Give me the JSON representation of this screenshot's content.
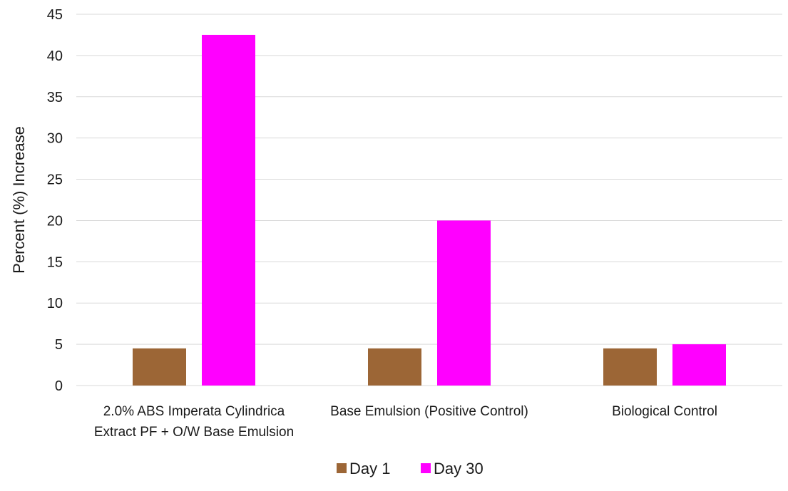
{
  "chart_data": {
    "type": "bar",
    "title": "",
    "xlabel": "",
    "ylabel": "Percent (%) Increase",
    "ylim": [
      0,
      45
    ],
    "yticks": [
      0,
      5,
      10,
      15,
      20,
      25,
      30,
      35,
      40,
      45
    ],
    "grid": true,
    "legend_position": "bottom-center",
    "categories": [
      [
        "2.0% ABS Imperata Cylindrica",
        "Extract PF + O/W Base Emulsion"
      ],
      [
        "Base Emulsion (Positive Control)"
      ],
      [
        "Biological Control"
      ]
    ],
    "series": [
      {
        "name": "Day 1",
        "color": "#9c6636",
        "values": [
          4.5,
          4.5,
          4.5
        ]
      },
      {
        "name": "Day 30",
        "color": "#ff00ff",
        "values": [
          42.5,
          20,
          5
        ]
      }
    ]
  }
}
